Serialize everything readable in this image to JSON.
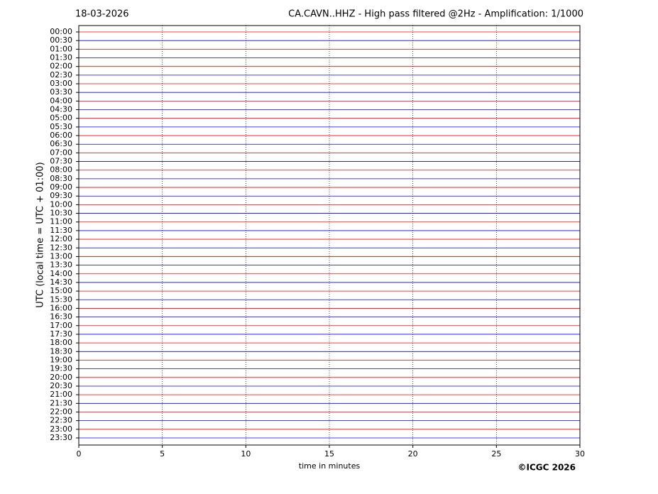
{
  "chart_data": {
    "type": "helicorder",
    "date": "18-03-2026",
    "title": "CA.CAVN..HHZ - High pass filtered @2Hz - Amplification: 1/1000",
    "x_label": "time in minutes",
    "y_label": "UTC (local time = UTC + 01:00)",
    "copyright": "©ICGC 2026",
    "categories": [
      "00:00",
      "00:30",
      "01:00",
      "01:30",
      "02:00",
      "02:30",
      "03:00",
      "03:30",
      "04:00",
      "04:30",
      "05:00",
      "05:30",
      "06:00",
      "06:30",
      "07:00",
      "07:30",
      "08:00",
      "08:30",
      "09:00",
      "09:30",
      "10:00",
      "10:30",
      "11:00",
      "11:30",
      "12:00",
      "12:30",
      "13:00",
      "13:30",
      "14:00",
      "14:30",
      "15:00",
      "15:30",
      "16:00",
      "16:30",
      "17:00",
      "17:30",
      "18:00",
      "18:30",
      "19:00",
      "19:30",
      "20:00",
      "20:30",
      "21:00",
      "21:30",
      "22:00",
      "22:30",
      "23:00",
      "23:30"
    ],
    "colors": [
      "#ff0000",
      "#0000ff"
    ],
    "xlim": [
      0,
      30
    ],
    "xticks": [
      0,
      5,
      10,
      15,
      20,
      25,
      30
    ],
    "grid": "x"
  }
}
